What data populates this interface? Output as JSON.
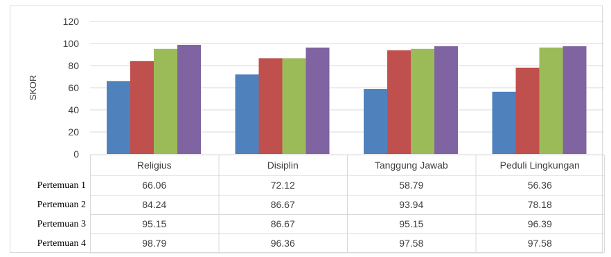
{
  "chart_data": {
    "type": "bar",
    "categories": [
      "Religius",
      "Disiplin",
      "Tanggung Jawab",
      "Peduli Lingkungan"
    ],
    "series": [
      {
        "name": "Pertemuan 1",
        "values": [
          66.06,
          72.12,
          58.79,
          56.36
        ],
        "color": "#4f81bd"
      },
      {
        "name": "Pertemuan 2",
        "values": [
          84.24,
          86.67,
          93.94,
          78.18
        ],
        "color": "#c0504d"
      },
      {
        "name": "Pertemuan 3",
        "values": [
          95.15,
          86.67,
          95.15,
          96.39
        ],
        "color": "#9bbb59"
      },
      {
        "name": "Pertemuan 4",
        "values": [
          98.79,
          96.36,
          97.58,
          97.58
        ],
        "color": "#8064a2"
      }
    ],
    "value_labels": [
      [
        "66.06",
        "72.12",
        "58.79",
        "56.36"
      ],
      [
        "84.24",
        "86.67",
        "93.94",
        "78.18"
      ],
      [
        "95.15",
        "86.67",
        "95.15",
        "96.39"
      ],
      [
        "98.79",
        "96.36",
        "97.58",
        "97.58"
      ]
    ],
    "ylabel": "SKOR",
    "ylim": [
      0,
      120
    ],
    "yticks": [
      "0",
      "20",
      "40",
      "60",
      "80",
      "100",
      "120"
    ],
    "grid": true,
    "legend": "data-table-below"
  }
}
